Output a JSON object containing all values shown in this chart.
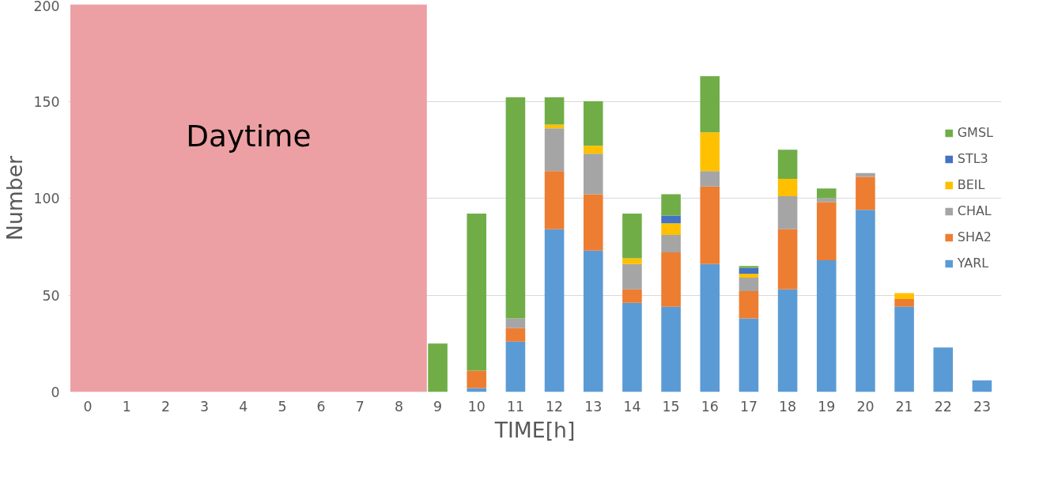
{
  "chart_data": {
    "type": "bar",
    "stacked": true,
    "xlabel": "TIME[h]",
    "ylabel": "Number",
    "x": [
      9,
      10,
      11,
      12,
      13,
      14,
      15,
      16,
      17,
      18,
      19,
      20,
      21,
      22,
      23
    ],
    "xlim": [
      -0.5,
      23.5
    ],
    "xticks": [
      0,
      1,
      2,
      3,
      4,
      5,
      6,
      7,
      8,
      9,
      10,
      11,
      12,
      13,
      14,
      15,
      16,
      17,
      18,
      19,
      20,
      21,
      22,
      23
    ],
    "ylim": [
      0,
      200
    ],
    "yticks": [
      0,
      50,
      100,
      150,
      200
    ],
    "grid": "y",
    "legend": "right",
    "series": [
      {
        "name": "YARL",
        "color": "#5b9bd5",
        "values": [
          null,
          2,
          26,
          84,
          73,
          46,
          44,
          66,
          38,
          53,
          68,
          94,
          44,
          23,
          6
        ]
      },
      {
        "name": "SHA2",
        "color": "#ed7d31",
        "values": [
          null,
          9,
          7,
          30,
          29,
          7,
          28,
          40,
          14,
          31,
          30,
          17,
          4,
          null,
          null
        ]
      },
      {
        "name": "CHAL",
        "color": "#a5a5a5",
        "values": [
          null,
          null,
          5,
          22,
          21,
          13,
          9,
          8,
          7,
          17,
          2,
          2,
          null,
          null,
          null
        ]
      },
      {
        "name": "BEIL",
        "color": "#ffc000",
        "values": [
          null,
          null,
          null,
          2,
          4,
          3,
          6,
          20,
          2,
          9,
          null,
          null,
          3,
          null,
          null
        ]
      },
      {
        "name": "STL3",
        "color": "#4472c4",
        "values": [
          null,
          null,
          null,
          null,
          null,
          null,
          4,
          null,
          3,
          null,
          null,
          null,
          null,
          null,
          null
        ]
      },
      {
        "name": "GMSL",
        "color": "#70ad47",
        "values": [
          25,
          81,
          114,
          14,
          23,
          23,
          11,
          29,
          1,
          15,
          5,
          null,
          null,
          null,
          null
        ]
      }
    ],
    "bands": [
      {
        "axis": "x",
        "from": -0.45,
        "to": 8.72,
        "label": "Daytime",
        "color": "#eda0a3"
      }
    ]
  }
}
